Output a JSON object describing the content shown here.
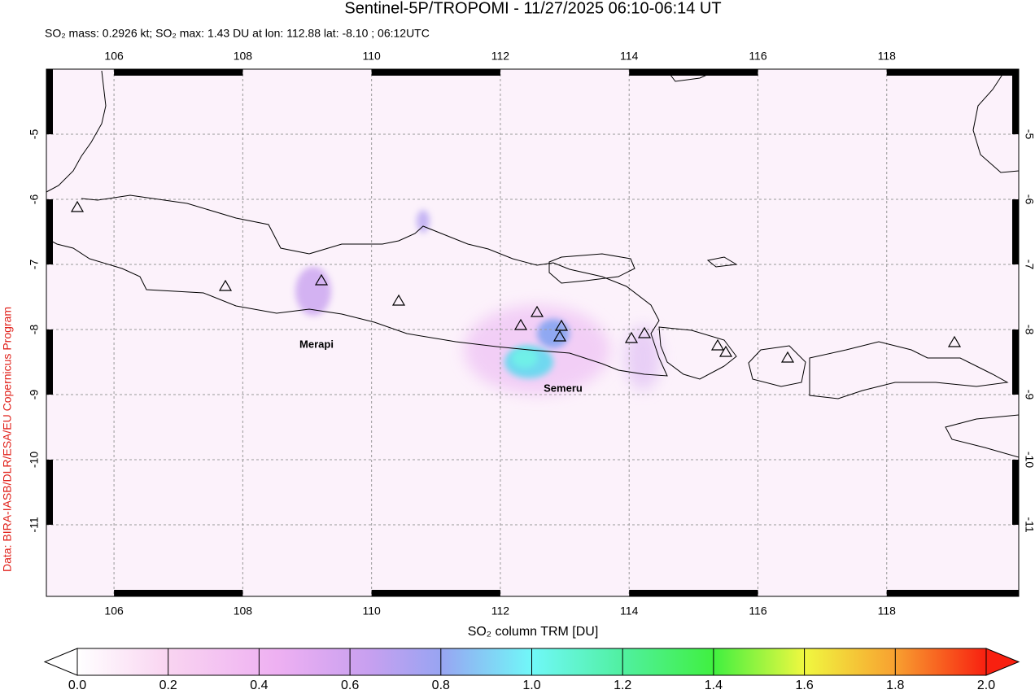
{
  "header": {
    "title": "Sentinel-5P/TROPOMI - 11/27/2025 06:10-06:14 UT",
    "subtitle": "SO₂ mass: 0.2926 kt; SO₂ max: 1.43 DU at lon: 112.88 lat: -8.10 ; 06:12UTC"
  },
  "map": {
    "xlim": [
      104.95,
      120.05
    ],
    "ylim": [
      -12.1,
      -4.0
    ],
    "xticks": [
      106,
      108,
      110,
      112,
      114,
      116,
      118
    ],
    "yticks": [
      -5,
      -6,
      -7,
      -8,
      -9,
      -10,
      -11
    ],
    "grid": true,
    "volcano_labels": [
      "Merapi",
      "Semeru"
    ]
  },
  "colorbar": {
    "label": "SO₂ column TRM [DU]",
    "lim": [
      0,
      2
    ],
    "ticks": [
      {
        "value": 0,
        "label": "0.0"
      },
      {
        "value": 0.2,
        "label": "0.2"
      },
      {
        "value": 0.4,
        "label": "0.4"
      },
      {
        "value": 0.6,
        "label": "0.6"
      },
      {
        "value": 0.8,
        "label": "0.8"
      },
      {
        "value": 1,
        "label": "1.0"
      },
      {
        "value": 1.2,
        "label": "1.2"
      },
      {
        "value": 1.4,
        "label": "1.4"
      },
      {
        "value": 1.6,
        "label": "1.6"
      },
      {
        "value": 1.8,
        "label": "1.8"
      },
      {
        "value": 2,
        "label": "2.0"
      }
    ]
  },
  "credit": "Data: BIRA-IASB/DLR/ESA/EU Copernicus Program"
}
